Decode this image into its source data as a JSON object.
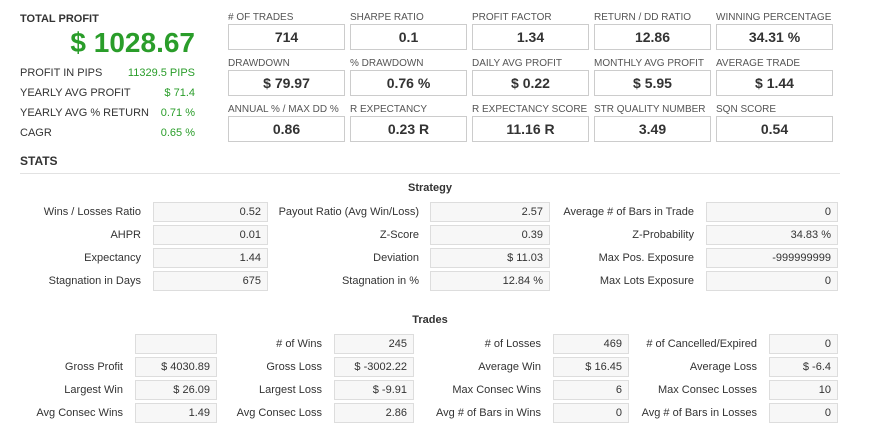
{
  "summary": {
    "title": "TOTAL PROFIT",
    "value": "$ 1028.67",
    "metrics": [
      {
        "label": "PROFIT IN PIPS",
        "value": "11329.5 PIPS"
      },
      {
        "label": "YEARLY AVG PROFIT",
        "value": "$ 71.4"
      },
      {
        "label": "YEARLY AVG % RETURN",
        "value": "0.71 %"
      },
      {
        "label": "CAGR",
        "value": "0.65 %"
      }
    ]
  },
  "kpis": [
    [
      {
        "label": "# OF TRADES",
        "value": "714"
      },
      {
        "label": "SHARPE RATIO",
        "value": "0.1"
      },
      {
        "label": "PROFIT FACTOR",
        "value": "1.34"
      },
      {
        "label": "RETURN / DD RATIO",
        "value": "12.86"
      },
      {
        "label": "WINNING PERCENTAGE",
        "value": "34.31 %"
      }
    ],
    [
      {
        "label": "DRAWDOWN",
        "value": "$ 79.97"
      },
      {
        "label": "% DRAWDOWN",
        "value": "0.76 %"
      },
      {
        "label": "DAILY AVG PROFIT",
        "value": "$ 0.22"
      },
      {
        "label": "MONTHLY AVG PROFIT",
        "value": "$ 5.95"
      },
      {
        "label": "AVERAGE TRADE",
        "value": "$ 1.44"
      }
    ],
    [
      {
        "label": "ANNUAL % / MAX DD %",
        "value": "0.86"
      },
      {
        "label": "R EXPECTANCY",
        "value": "0.23 R"
      },
      {
        "label": "R EXPECTANCY SCORE",
        "value": "11.16 R"
      },
      {
        "label": "STR QUALITY NUMBER",
        "value": "3.49"
      },
      {
        "label": "SQN SCORE",
        "value": "0.54"
      }
    ]
  ],
  "stats_title": "STATS",
  "strategy": {
    "title": "Strategy",
    "rows": [
      [
        {
          "label": "Wins / Losses Ratio",
          "value": "0.52"
        },
        {
          "label": "Payout Ratio (Avg Win/Loss)",
          "value": "2.57"
        },
        {
          "label": "Average # of Bars in Trade",
          "value": "0"
        }
      ],
      [
        {
          "label": "AHPR",
          "value": "0.01"
        },
        {
          "label": "Z-Score",
          "value": "0.39"
        },
        {
          "label": "Z-Probability",
          "value": "34.83 %"
        }
      ],
      [
        {
          "label": "Expectancy",
          "value": "1.44"
        },
        {
          "label": "Deviation",
          "value": "$ 11.03"
        },
        {
          "label": "Max Pos. Exposure",
          "value": "-999999999"
        }
      ],
      [
        {
          "label": "Stagnation in Days",
          "value": "675"
        },
        {
          "label": "Stagnation in %",
          "value": "12.84 %"
        },
        {
          "label": "Max Lots Exposure",
          "value": "0"
        }
      ]
    ]
  },
  "trades": {
    "title": "Trades",
    "first_row": [
      {
        "label": "# of Wins",
        "value": "245"
      },
      {
        "label": "# of Losses",
        "value": "469"
      },
      {
        "label": "# of Cancelled/Expired",
        "value": "0"
      }
    ],
    "rows": [
      [
        {
          "label": "Gross Profit",
          "value": "$ 4030.89"
        },
        {
          "label": "Gross Loss",
          "value": "$ -3002.22"
        },
        {
          "label": "Average Win",
          "value": "$ 16.45"
        },
        {
          "label": "Average Loss",
          "value": "$ -6.4"
        }
      ],
      [
        {
          "label": "Largest Win",
          "value": "$ 26.09"
        },
        {
          "label": "Largest Loss",
          "value": "$ -9.91"
        },
        {
          "label": "Max Consec Wins",
          "value": "6"
        },
        {
          "label": "Max Consec Losses",
          "value": "10"
        }
      ],
      [
        {
          "label": "Avg Consec Wins",
          "value": "1.49"
        },
        {
          "label": "Avg Consec Loss",
          "value": "2.86"
        },
        {
          "label": "Avg # of Bars in Wins",
          "value": "0"
        },
        {
          "label": "Avg # of Bars in Losses",
          "value": "0"
        }
      ]
    ]
  }
}
